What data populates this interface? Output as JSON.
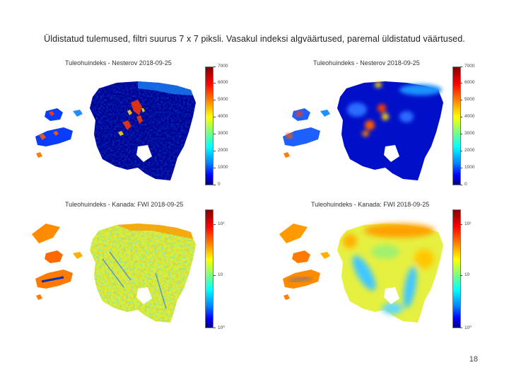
{
  "slide": {
    "title": "Üldistatud tulemused, filtri suurus 7 x 7 piksli. Vasakul indeksi algväärtused, paremal üldistatud väärtused.",
    "page_number": "18"
  },
  "panels": [
    {
      "title": "Tuleohuindeks - Nesterov 2018-09-25",
      "kind": "nesterov-raw",
      "colorbar_ticks": [
        "7000",
        "6000",
        "5000",
        "4000",
        "3000",
        "2000",
        "1000",
        "0"
      ]
    },
    {
      "title": "Tuleohuindeks - Nesterov 2018-09-25",
      "kind": "nesterov-smooth",
      "colorbar_ticks": [
        "7000",
        "6000",
        "5000",
        "4000",
        "3000",
        "2000",
        "1000",
        "0"
      ]
    },
    {
      "title": "Tuleohuindeks - Kanada: FWI 2018-09-25",
      "kind": "fwi-raw",
      "colorbar_ticks": [
        "10²",
        "10",
        "10⁰"
      ]
    },
    {
      "title": "Tuleohuindeks - Kanada: FWI 2018-09-25",
      "kind": "fwi-smooth",
      "colorbar_ticks": [
        "10²",
        "10",
        "10⁰"
      ]
    }
  ],
  "colors": {
    "jet_dark_blue": "#00007f",
    "jet_blue": "#0000ff",
    "jet_cyan": "#00ffff",
    "jet_green": "#7fff7f",
    "jet_yellow": "#ffff00",
    "jet_orange": "#ff7f00",
    "jet_red": "#ff0000",
    "jet_dark_red": "#7f0000"
  }
}
